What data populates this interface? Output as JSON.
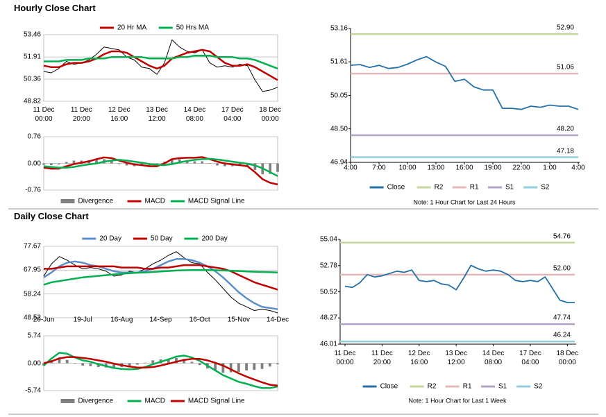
{
  "headers": [
    "Hourly Close Chart",
    "Daily Close Chart"
  ],
  "chart_data": [
    {
      "type": "line",
      "categories": [
        "11 Dec\n00:00",
        null,
        null,
        null,
        null,
        "11 Dec\n20:00",
        null,
        null,
        null,
        null,
        "12 Dec\n16:00",
        null,
        null,
        null,
        null,
        "13 Dec\n12:00",
        null,
        null,
        null,
        null,
        "14 Dec\n08:00",
        null,
        null,
        null,
        null,
        "17 Dec\n04:00",
        null,
        null,
        null,
        null,
        "18 Dec\n00:00",
        null
      ],
      "ylim": [
        48.82,
        53.46
      ],
      "yticks": [
        48.82,
        50.36,
        51.91,
        53.46
      ],
      "grid": true,
      "legend": "top",
      "series": [
        {
          "color": "#000000",
          "values": [
            50.9,
            50.8,
            51.1,
            51.6,
            51.4,
            51.5,
            51.7,
            52.1,
            52.6,
            52.5,
            52.4,
            51.9,
            51.7,
            51.2,
            51.1,
            50.7,
            51.5,
            53.1,
            52.6,
            52.3,
            52.2,
            52.4,
            51.5,
            51.2,
            51.3,
            51.2,
            51.4,
            51.3,
            50.3,
            49.5,
            49.6,
            49.8
          ]
        },
        {
          "name": "20 Hr MA",
          "color": "#c00000",
          "values": [
            51.3,
            51.2,
            51.2,
            51.4,
            51.5,
            51.5,
            51.6,
            51.8,
            52.1,
            52.3,
            52.3,
            52.2,
            51.9,
            51.6,
            51.3,
            51.1,
            51.3,
            51.8,
            52.0,
            52.2,
            52.3,
            52.4,
            52.3,
            51.9,
            51.5,
            51.3,
            51.3,
            51.4,
            51.2,
            50.9,
            50.6,
            50.3
          ]
        },
        {
          "name": "50 Hrs MA",
          "color": "#00b050",
          "values": [
            51.6,
            51.6,
            51.6,
            51.7,
            51.7,
            51.7,
            51.8,
            51.8,
            51.8,
            51.9,
            51.9,
            51.9,
            51.9,
            51.9,
            51.8,
            51.8,
            51.8,
            51.8,
            51.9,
            51.9,
            52.0,
            52.0,
            52.0,
            51.9,
            51.9,
            51.9,
            51.8,
            51.8,
            51.7,
            51.5,
            51.3,
            51.1
          ]
        }
      ]
    },
    {
      "type": "line",
      "categories": [
        null,
        null,
        null,
        null,
        null,
        null,
        null,
        null,
        null,
        null,
        null,
        null,
        null,
        null,
        null,
        null,
        null,
        null,
        null,
        null,
        null,
        null,
        null,
        null,
        null,
        null,
        null,
        null,
        null,
        null,
        null,
        null
      ],
      "ylim": [
        -0.76,
        0.76
      ],
      "yticks": [
        -0.76,
        {
          "value": 0,
          "label": "0.00"
        },
        0.76
      ],
      "grid": true,
      "legend": "bottom",
      "series": [
        {
          "name": "Divergence",
          "type": "bar",
          "color": "#808080",
          "values": [
            -0.04,
            -0.05,
            -0.03,
            0.04,
            0.08,
            0.08,
            0.09,
            0.12,
            0.12,
            0.07,
            -0.02,
            -0.06,
            -0.08,
            -0.07,
            -0.06,
            -0.04,
            0.05,
            0.14,
            0.12,
            0.09,
            0.06,
            0.06,
            -0.01,
            -0.06,
            -0.08,
            -0.08,
            -0.07,
            -0.07,
            -0.19,
            -0.31,
            -0.3,
            -0.24
          ]
        },
        {
          "name": "MACD",
          "color": "#c00000",
          "values": [
            -0.12,
            -0.15,
            -0.15,
            -0.08,
            -0.02,
            0.02,
            0.06,
            0.12,
            0.17,
            0.15,
            0.08,
            0.02,
            -0.03,
            -0.05,
            -0.08,
            -0.08,
            0.0,
            0.12,
            0.15,
            0.16,
            0.16,
            0.18,
            0.12,
            0.05,
            0.0,
            -0.03,
            -0.05,
            -0.08,
            -0.25,
            -0.45,
            -0.55,
            -0.6
          ]
        },
        {
          "name": "MACD Signal Line",
          "color": "#00b050",
          "values": [
            -0.08,
            -0.1,
            -0.12,
            -0.12,
            -0.1,
            -0.06,
            -0.03,
            0.0,
            0.05,
            0.08,
            0.1,
            0.08,
            0.05,
            0.02,
            -0.02,
            -0.04,
            -0.05,
            -0.02,
            0.03,
            0.07,
            0.1,
            0.12,
            0.13,
            0.11,
            0.08,
            0.05,
            0.02,
            -0.01,
            -0.06,
            -0.14,
            -0.25,
            -0.36
          ]
        }
      ]
    },
    {
      "type": "line",
      "categories": [
        "4:00",
        null,
        null,
        "7:00",
        null,
        null,
        "10:00",
        null,
        null,
        "13:00",
        null,
        null,
        "16:00",
        null,
        null,
        "19:00",
        null,
        null,
        "22:00",
        null,
        null,
        "1:00",
        null,
        null,
        "4:00"
      ],
      "ylim": [
        46.94,
        53.16
      ],
      "yticks": [
        46.94,
        {
          "value": 48.5,
          "label": "48.50"
        },
        50.05,
        51.61,
        53.16
      ],
      "grid": false,
      "legend": "bottom",
      "series": [
        {
          "name": "Close",
          "color": "#2470a6",
          "values": [
            51.45,
            51.48,
            51.35,
            51.45,
            51.3,
            51.35,
            51.5,
            51.7,
            51.85,
            51.6,
            51.4,
            50.7,
            50.8,
            50.45,
            50.3,
            50.3,
            49.45,
            49.45,
            49.4,
            49.55,
            49.5,
            49.6,
            49.55,
            49.55,
            49.4
          ]
        }
      ],
      "levels": [
        {
          "name": "R2",
          "color": "#c3d69b",
          "value": 52.9,
          "value_label": "52.90"
        },
        {
          "name": "R1",
          "color": "#e6b9b8",
          "value": 51.06
        },
        {
          "name": "S1",
          "color": "#b3a2c7",
          "value": 48.2,
          "value_label": "48.20"
        },
        {
          "name": "S2",
          "color": "#93cddd",
          "value": 47.18
        }
      ],
      "note": "Note: 1 Hour Chart for Last 24 Hours"
    },
    {
      "type": "line",
      "categories": [
        "20-Jun",
        null,
        null,
        null,
        null,
        "19-Jul",
        null,
        null,
        null,
        null,
        "16-Aug",
        null,
        null,
        null,
        null,
        "14-Sep",
        null,
        null,
        null,
        null,
        "16-Oct",
        null,
        null,
        null,
        null,
        "15-Nov",
        null,
        null,
        null,
        null,
        "14-Dec"
      ],
      "ylim": [
        48.52,
        77.67
      ],
      "yticks": [
        48.52,
        58.24,
        67.95,
        77.67
      ],
      "grid": true,
      "legend": "top",
      "series": [
        {
          "color": "#000000",
          "values": [
            65.5,
            70.5,
            73.5,
            72,
            70,
            68.5,
            69,
            68.5,
            67.5,
            65.5,
            66,
            67.5,
            67,
            68.5,
            70.5,
            72,
            74,
            75.5,
            73,
            71,
            70.5,
            67,
            64,
            60.5,
            57,
            54.5,
            53,
            51.5,
            52,
            51.5,
            50.5
          ]
        },
        {
          "name": "20 Day",
          "color": "#5b8ec7",
          "values": [
            65,
            67,
            69.5,
            71,
            71.5,
            71,
            70,
            69.5,
            68.5,
            67.5,
            67,
            67,
            67,
            67.5,
            68.5,
            70,
            71.5,
            72.5,
            72.5,
            72,
            71,
            69.5,
            67.5,
            65,
            62,
            59,
            56.5,
            54.5,
            53,
            52.5,
            52
          ]
        },
        {
          "name": "50 Day",
          "color": "#c00000",
          "values": [
            68.5,
            68.5,
            69,
            69.5,
            69.5,
            69.5,
            69.5,
            69.5,
            69.5,
            69.5,
            69,
            69,
            69,
            68.5,
            68.5,
            69,
            69,
            69.5,
            70,
            70,
            70,
            69.5,
            69,
            68.5,
            67.5,
            66,
            64.5,
            63,
            62,
            61,
            60
          ]
        },
        {
          "name": "200 Day",
          "color": "#00b050",
          "values": [
            62,
            63,
            63.5,
            64,
            64.5,
            65,
            65.3,
            65.6,
            65.9,
            66.2,
            66.5,
            66.7,
            66.9,
            67,
            67.2,
            67.4,
            67.6,
            67.8,
            67.9,
            68,
            68,
            68,
            67.9,
            67.8,
            67.7,
            67.6,
            67.4,
            67.3,
            67.2,
            67.1,
            67
          ]
        }
      ]
    },
    {
      "type": "line",
      "categories": [
        null,
        null,
        null,
        null,
        null,
        null,
        null,
        null,
        null,
        null,
        null,
        null,
        null,
        null,
        null,
        null,
        null,
        null,
        null,
        null,
        null,
        null,
        null,
        null,
        null,
        null,
        null,
        null,
        null,
        null,
        null
      ],
      "ylim": [
        -5.74,
        5.74
      ],
      "yticks": [
        -5.74,
        {
          "value": 0,
          "label": "0.00"
        },
        5.74
      ],
      "grid": true,
      "legend": "bottom",
      "series": [
        {
          "name": "Divergence",
          "type": "bar",
          "color": "#808080",
          "values": [
            -0.5,
            0.6,
            1.2,
            0.7,
            -0.1,
            -0.5,
            -0.6,
            -0.8,
            -0.9,
            -0.9,
            -0.8,
            -0.6,
            -0.3,
            0.1,
            0.6,
            0.8,
            0.9,
            1.1,
            0.9,
            0.3,
            -0.4,
            -1.1,
            -1.6,
            -2.0,
            -1.9,
            -1.8,
            -1.5,
            -1.4,
            -1.2,
            -0.7,
            -0.2
          ]
        },
        {
          "name": "MACD",
          "color": "#00b050",
          "values": [
            -0.5,
            1.0,
            2.2,
            2.0,
            1.2,
            0.6,
            0.3,
            -0.2,
            -0.6,
            -1.0,
            -1.2,
            -1.3,
            -1.2,
            -0.8,
            -0.2,
            0.3,
            0.8,
            1.4,
            1.6,
            1.2,
            0.5,
            -0.5,
            -1.5,
            -2.5,
            -3.2,
            -3.9,
            -4.3,
            -4.8,
            -5.2,
            -5.2,
            -4.9
          ]
        },
        {
          "name": "MACD Signal Line",
          "color": "#c00000",
          "values": [
            0.0,
            0.4,
            1.0,
            1.3,
            1.3,
            1.1,
            0.9,
            0.6,
            0.3,
            -0.1,
            -0.4,
            -0.7,
            -0.9,
            -0.9,
            -0.8,
            -0.5,
            -0.1,
            0.3,
            0.7,
            0.9,
            0.9,
            0.6,
            0.1,
            -0.5,
            -1.3,
            -2.1,
            -2.8,
            -3.4,
            -4.0,
            -4.5,
            -4.7
          ]
        }
      ]
    },
    {
      "type": "line",
      "categories": [
        "11 Dec\n00:00",
        null,
        null,
        null,
        null,
        "11 Dec\n20:00",
        null,
        null,
        null,
        null,
        "12 Dec\n16:00",
        null,
        null,
        null,
        null,
        "13 Dec\n12:00",
        null,
        null,
        null,
        null,
        "14 Dec\n08:00",
        null,
        null,
        null,
        null,
        "17 Dec\n04:00",
        null,
        null,
        null,
        null,
        "18 Dec\n00:00",
        null
      ],
      "ylim": [
        46.01,
        55.04
      ],
      "yticks": [
        46.01,
        48.27,
        50.52,
        52.78,
        55.04
      ],
      "grid": false,
      "legend": "bottom",
      "series": [
        {
          "name": "Close",
          "color": "#2470a6",
          "values": [
            51.0,
            50.9,
            51.3,
            52.0,
            51.8,
            51.9,
            52.1,
            52.3,
            52.2,
            52.4,
            51.5,
            51.4,
            51.5,
            51.2,
            51.1,
            50.7,
            51.7,
            52.8,
            52.5,
            52.3,
            52.4,
            52.3,
            52.0,
            51.5,
            51.4,
            51.5,
            51.4,
            51.8,
            50.8,
            49.8,
            49.6,
            49.6
          ]
        }
      ],
      "levels": [
        {
          "name": "R2",
          "color": "#c3d69b",
          "value": 54.76
        },
        {
          "name": "R1",
          "color": "#e6b9b8",
          "value": 52,
          "value_label": "52.00"
        },
        {
          "name": "S1",
          "color": "#b3a2c7",
          "value": 47.74
        },
        {
          "name": "S2",
          "color": "#93cddd",
          "value": 46.24
        }
      ],
      "note": "Note: 1 Hour Chart for Last 1 Week"
    }
  ]
}
